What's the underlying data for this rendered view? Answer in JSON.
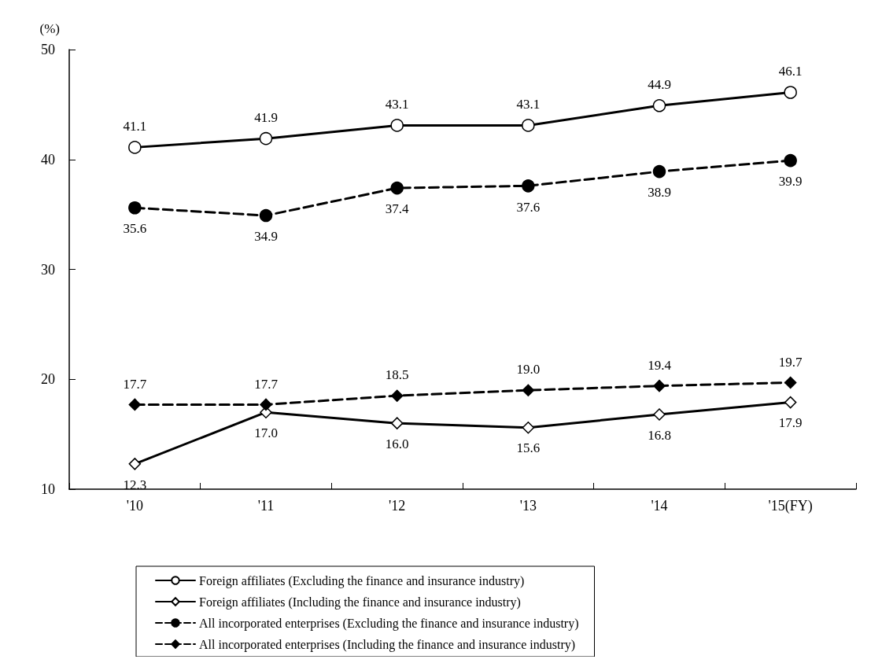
{
  "chart_data": {
    "type": "line",
    "ylabel": "(%)",
    "categories": [
      "'10",
      "'11",
      "'12",
      "'13",
      "'14",
      "'15(FY)"
    ],
    "ylim": [
      10,
      50
    ],
    "yticks": [
      10,
      20,
      30,
      40,
      50
    ],
    "grid": false,
    "legend": "bottom",
    "series": [
      {
        "name": "Foreign affiliates (Excluding the finance and insurance industry)",
        "color": "#000000",
        "marker": "circle",
        "line_style": "solid",
        "values": [
          41.1,
          41.9,
          43.1,
          43.1,
          44.9,
          46.1
        ],
        "value_labels": [
          "41.1",
          "41.9",
          "43.1",
          "43.1",
          "44.9",
          "46.1"
        ]
      },
      {
        "name": "Foreign affiliates (Including the finance and insurance industry)",
        "color": "#000000",
        "marker": "diamond",
        "line_style": "solid",
        "values": [
          12.3,
          17.0,
          16.0,
          15.6,
          16.8,
          17.9
        ],
        "value_labels": [
          "12.3",
          "17.0",
          "16.0",
          "15.6",
          "16.8",
          "17.9"
        ]
      },
      {
        "name": "All incorporated enterprises (Excluding the finance and insurance industry)",
        "color": "#000000",
        "marker": "circle",
        "line_style": "dashed",
        "values": [
          35.6,
          34.9,
          37.4,
          37.6,
          38.9,
          39.9
        ],
        "value_labels": [
          "35.6",
          "34.9",
          "37.4",
          "37.6",
          "38.9",
          "39.9"
        ]
      },
      {
        "name": "All incorporated enterprises (Including the finance and insurance industry)",
        "color": "#000000",
        "marker": "diamond",
        "line_style": "dashed",
        "values": [
          17.7,
          17.7,
          18.5,
          19.0,
          19.4,
          19.7
        ],
        "value_labels": [
          "17.7",
          "17.7",
          "18.5",
          "19.0",
          "19.4",
          "19.7"
        ]
      }
    ]
  }
}
